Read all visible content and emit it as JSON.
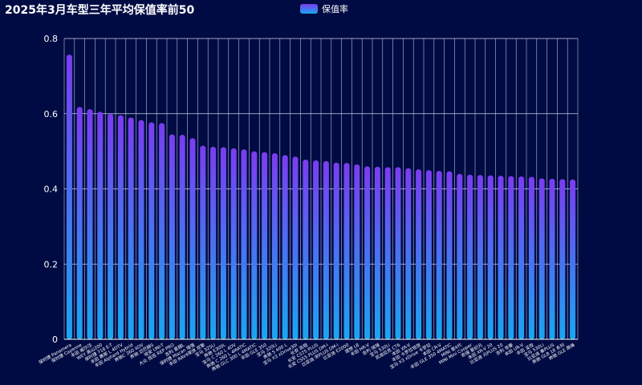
{
  "chart_data": {
    "type": "bar",
    "title": "2025年3月车型三年平均保值率前50",
    "legend": "保值率",
    "legend_position": "top-center",
    "xlabel": "",
    "ylabel": "",
    "ylim": [
      0,
      0.8
    ],
    "yticks": [
      "0",
      "0.2",
      "0.4",
      "0.6",
      "0.8"
    ],
    "grid": true,
    "colors": {
      "top": "#7b3cf0",
      "bottom": "#1aa6f0",
      "background": "#010b43"
    },
    "series": [
      {
        "name": "保值率",
        "values": [
          0.757,
          0.618,
          0.612,
          0.605,
          0.6,
          0.596,
          0.59,
          0.583,
          0.577,
          0.575,
          0.545,
          0.544,
          0.535,
          0.515,
          0.512,
          0.511,
          0.508,
          0.505,
          0.5,
          0.498,
          0.495,
          0.49,
          0.486,
          0.478,
          0.476,
          0.474,
          0.47,
          0.469,
          0.465,
          0.46,
          0.459,
          0.458,
          0.458,
          0.455,
          0.452,
          0.45,
          0.448,
          0.447,
          0.44,
          0.438,
          0.437,
          0.436,
          0.435,
          0.434,
          0.433,
          0.432,
          0.428,
          0.427,
          0.426,
          0.425
        ]
      }
    ],
    "categories": [
      "保时捷 Panamera",
      "保时捷 Cayenne",
      "丰田 威尔法",
      "WEY 高山200",
      "保时捷 718 E-T",
      "丰田 赛那 L 4DTV",
      "丰田 Alphard Hybrid",
      "奔驰C 260 4DV",
      "奔驰 迈巴赫S",
      "埃安 UNI-T",
      "大众 揽巡 REP PRO",
      "吉利 星越L",
      "保时捷 Macan 增强",
      "丰田 RAV4荣放 双擎",
      "宝马 325Li",
      "奔驰 E300L",
      "宝马 C 260 L 4DV",
      "奔驰 C 260 L 4MATIC",
      "奔驰 GLC 300 L 4MATIC",
      "丰田 GLE 350",
      "宝马 320Li",
      "奔驰 S 400 L",
      "宝马 X3 xDrive30i",
      "长安 凯程",
      "长安 CS75 PLUS",
      "长安 CS55 PLUS DM-i",
      "比亚迪 宋PLUS DM-i",
      "比亚迪 E2000",
      "理想 L8",
      "丰田 HR-V",
      "吉利 缤瑞",
      "宝马 530Li",
      "凯迪拉克 CT6",
      "本田 XR-V",
      "丰田 卡罗拉锐放",
      "宝马 X3 xDrive 卡罗拉",
      "本田 CR-V",
      "丰田 GLE 350 4MATIC",
      "MINI 第4代",
      "MINI Mini Cooper",
      "奇瑞 星纪元",
      "本田 XR-V 20",
      "比亚迪 元PLUS 20",
      "吉利 帝豪",
      "本田 UR-V",
      "丰田 凌放",
      "宝马 530Li",
      "比亚迪 秦PLUS",
      "奔驰 GLB 18 系列",
      "奔驰 GLE 鼎峰"
    ]
  }
}
